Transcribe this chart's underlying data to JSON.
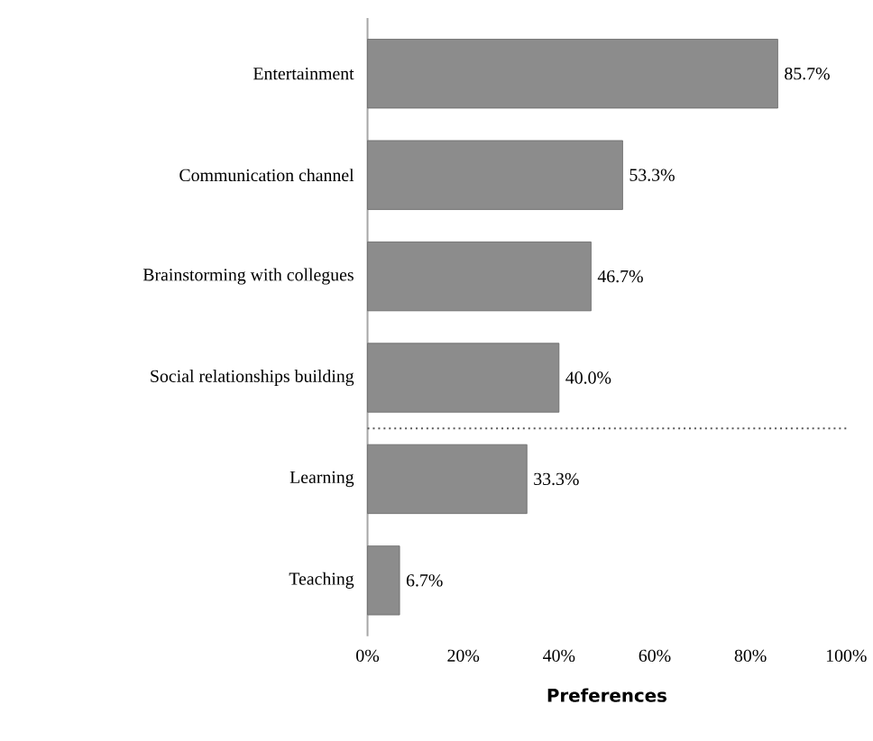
{
  "chart_data": {
    "type": "bar",
    "orientation": "horizontal",
    "xlabel": "Preferences",
    "categories": [
      "Entertainment",
      "Communication channel",
      "Brainstorming with collegues",
      "Social relationships building",
      "Learning",
      "Teaching"
    ],
    "values": [
      85.7,
      53.3,
      46.7,
      40.0,
      33.3,
      6.7
    ],
    "value_labels": [
      "85.7%",
      "53.3%",
      "46.7%",
      "40.0%",
      "33.3%",
      "6.7%"
    ],
    "color": "#8c8c8c",
    "xlim": [
      0,
      100
    ],
    "xticks": [
      {
        "value": 0,
        "label": "0%"
      },
      {
        "value": 20,
        "label": "20%"
      },
      {
        "value": 40,
        "label": "40%"
      },
      {
        "value": 60,
        "label": "60%"
      },
      {
        "value": 80,
        "label": "80%"
      },
      {
        "value": 100,
        "label": "100%"
      }
    ],
    "grid": false
  }
}
